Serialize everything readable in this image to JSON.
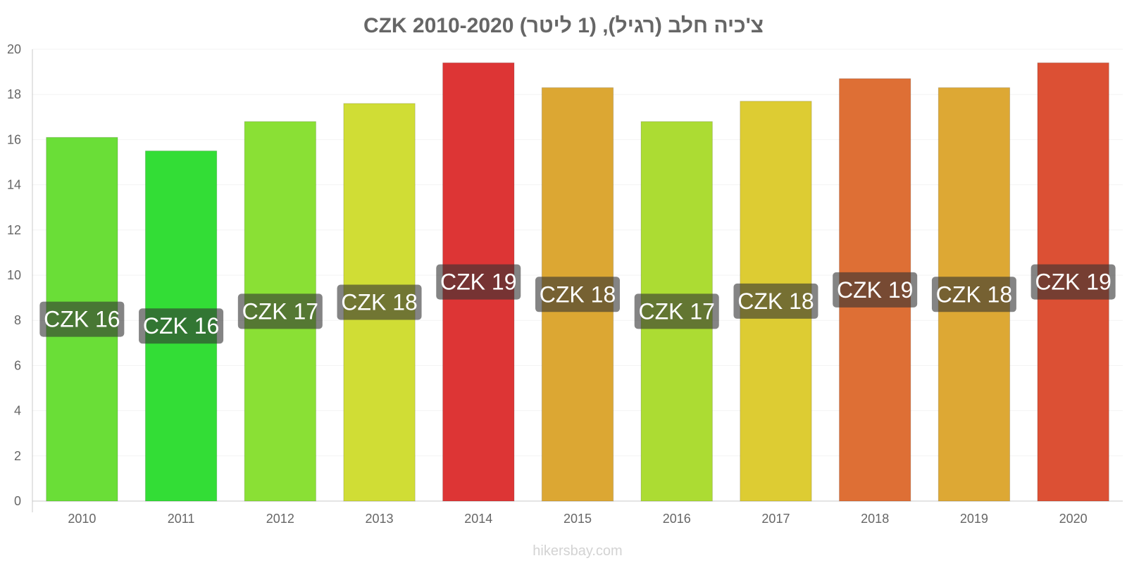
{
  "chart_data": {
    "type": "bar",
    "title": "צ'כיה חלב (רגיל), (1 ליטר) CZK 2010-2020",
    "categories": [
      "2010",
      "2011",
      "2012",
      "2013",
      "2014",
      "2015",
      "2016",
      "2017",
      "2018",
      "2019",
      "2020"
    ],
    "values": [
      16.1,
      15.5,
      16.8,
      17.6,
      19.4,
      18.3,
      16.8,
      17.7,
      18.7,
      18.3,
      19.4
    ],
    "value_labels": [
      "CZK 16",
      "CZK 16",
      "CZK 17",
      "CZK 18",
      "CZK 19",
      "CZK 18",
      "CZK 17",
      "CZK 18",
      "CZK 19",
      "CZK 18",
      "CZK 19"
    ],
    "bar_colors": [
      "#6ade37",
      "#33dd36",
      "#8ae035",
      "#d0dd35",
      "#dd3535",
      "#dca733",
      "#acdc33",
      "#ddcc33",
      "#de6f35",
      "#dda834",
      "#dc5034"
    ],
    "ylim": [
      0,
      20
    ],
    "yticks": [
      0,
      2,
      4,
      6,
      8,
      10,
      12,
      14,
      16,
      18,
      20
    ],
    "xlabel": "",
    "ylabel": "",
    "grid": true,
    "legend": false
  },
  "watermark": "hikersbay.com"
}
